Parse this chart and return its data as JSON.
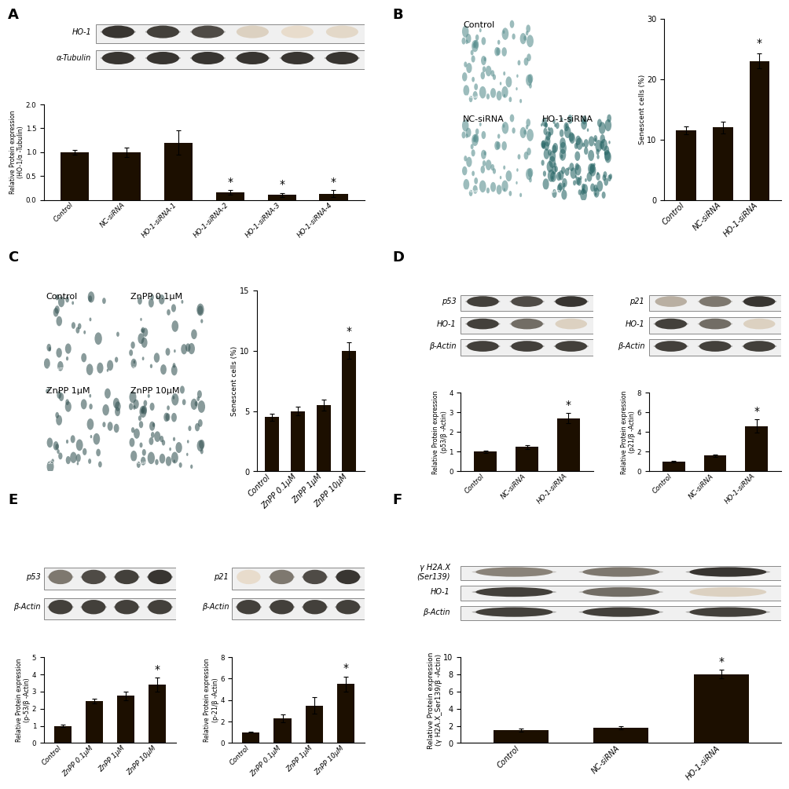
{
  "panel_A": {
    "label": "A",
    "wb_data": [
      {
        "label": "HO-1",
        "intensities": [
          0.85,
          0.8,
          0.75,
          0.15,
          0.1,
          0.12
        ]
      },
      {
        "label": "α-Tubulin",
        "intensities": [
          0.85,
          0.85,
          0.85,
          0.85,
          0.85,
          0.85
        ]
      }
    ],
    "n_lanes": 6,
    "categories": [
      "Control",
      "NC-siRNA",
      "HO-1-siRNA-1",
      "HO-1-siRNA-2",
      "HO-1-siRNA-3",
      "HO-1-siRNA-4"
    ],
    "values": [
      1.0,
      1.0,
      1.2,
      0.15,
      0.1,
      0.13
    ],
    "errors": [
      0.05,
      0.1,
      0.25,
      0.05,
      0.04,
      0.07
    ],
    "ylabel": "Relative Protein expression\n(HO-1/α -Tubulin)",
    "ylim": [
      0,
      2.0
    ],
    "yticks": [
      0.0,
      0.5,
      1.0,
      1.5,
      2.0
    ],
    "sig_bars": [
      3,
      4,
      5
    ],
    "bar_color": "#1c0f00"
  },
  "panel_B": {
    "label": "B",
    "img_labels": [
      "Control",
      "NC-siRNA",
      "HO-1-siRNA"
    ],
    "img_bg": "#d8c8c0",
    "categories": [
      "Control",
      "NC-siRNA",
      "HO-1-siRNA"
    ],
    "values": [
      11.5,
      12.0,
      23.0
    ],
    "errors": [
      0.7,
      1.0,
      1.2
    ],
    "ylabel": "Senescent cells (%)",
    "ylim": [
      0,
      30
    ],
    "yticks": [
      0,
      10,
      20,
      30
    ],
    "sig_bars": [
      2
    ],
    "bar_color": "#1c0f00"
  },
  "panel_C": {
    "label": "C",
    "img_labels": [
      "Control",
      "ZnPP 0.1μM",
      "ZnPP 1μM",
      "ZnPP 10μM"
    ],
    "img_bg": "#ccd8dc",
    "categories": [
      "Control",
      "ZnPP 0.1μM",
      "ZnPP 1μM",
      "ZnPP 10μM"
    ],
    "values": [
      4.5,
      5.0,
      5.5,
      10.0
    ],
    "errors": [
      0.3,
      0.35,
      0.45,
      0.7
    ],
    "ylabel": "Senescent cells (%)",
    "ylim": [
      0,
      15
    ],
    "yticks": [
      0,
      5,
      10,
      15
    ],
    "sig_bars": [
      3
    ],
    "bar_color": "#1c0f00"
  },
  "panel_D_p53": {
    "label": "D",
    "wb_data": [
      {
        "label": "p53",
        "intensities": [
          0.8,
          0.75,
          0.85
        ]
      },
      {
        "label": "HO-1",
        "intensities": [
          0.8,
          0.6,
          0.15
        ]
      },
      {
        "label": "β-Actin",
        "intensities": [
          0.8,
          0.8,
          0.8
        ]
      }
    ],
    "n_lanes": 3,
    "categories": [
      "Control",
      "NC-siRNA",
      "HO-1-siRNA"
    ],
    "values": [
      1.0,
      1.25,
      2.7
    ],
    "errors": [
      0.05,
      0.1,
      0.25
    ],
    "ylabel": "Relative Protein expression\n(p53/β -Actin)",
    "ylim": [
      0,
      4
    ],
    "yticks": [
      0,
      1,
      2,
      3,
      4
    ],
    "sig_bars": [
      2
    ],
    "bar_color": "#1c0f00"
  },
  "panel_D_p21": {
    "wb_data": [
      {
        "label": "p21",
        "intensities": [
          0.3,
          0.55,
          0.85
        ]
      },
      {
        "label": "HO-1",
        "intensities": [
          0.8,
          0.6,
          0.15
        ]
      },
      {
        "label": "β-Actin",
        "intensities": [
          0.8,
          0.8,
          0.8
        ]
      }
    ],
    "n_lanes": 3,
    "categories": [
      "Control",
      "NC-siRNA",
      "HO-1-siRNA"
    ],
    "values": [
      1.0,
      1.6,
      4.6
    ],
    "errors": [
      0.05,
      0.1,
      0.7
    ],
    "ylabel": "Relative Protein expression\n(p21/β -Actin)",
    "ylim": [
      0,
      8
    ],
    "yticks": [
      0,
      2,
      4,
      6,
      8
    ],
    "sig_bars": [
      2
    ],
    "bar_color": "#1c0f00"
  },
  "panel_E_p53": {
    "label": "E",
    "wb_data": [
      {
        "label": "p53",
        "intensities": [
          0.55,
          0.75,
          0.8,
          0.85
        ]
      },
      {
        "label": "β-Actin",
        "intensities": [
          0.8,
          0.8,
          0.8,
          0.8
        ]
      }
    ],
    "n_lanes": 4,
    "categories": [
      "Control",
      "ZnPP 0.1μM",
      "ZnPP 1μM",
      "ZnPP 10μM"
    ],
    "values": [
      1.0,
      2.45,
      2.75,
      3.4
    ],
    "errors": [
      0.05,
      0.15,
      0.25,
      0.4
    ],
    "ylabel": "Relative Protein expression\n(p-53/β -Actin)",
    "ylim": [
      0,
      5
    ],
    "yticks": [
      0,
      1,
      2,
      3,
      4,
      5
    ],
    "sig_bars": [
      3
    ],
    "bar_color": "#1c0f00"
  },
  "panel_E_p21": {
    "wb_data": [
      {
        "label": "p21",
        "intensities": [
          0.1,
          0.55,
          0.75,
          0.85
        ]
      },
      {
        "label": "β-Actin",
        "intensities": [
          0.8,
          0.8,
          0.8,
          0.8
        ]
      }
    ],
    "n_lanes": 4,
    "categories": [
      "Control",
      "ZnPP 0.1μM",
      "ZnPP 1μM",
      "ZnPP 10μM"
    ],
    "values": [
      1.0,
      2.3,
      3.5,
      5.5
    ],
    "errors": [
      0.05,
      0.35,
      0.8,
      0.7
    ],
    "ylabel": "Relative Protein expression\n(p-21/β -Actin)",
    "ylim": [
      0,
      8
    ],
    "yticks": [
      0,
      2,
      4,
      6,
      8
    ],
    "sig_bars": [
      3
    ],
    "bar_color": "#1c0f00"
  },
  "panel_F": {
    "label": "F",
    "wb_data": [
      {
        "label": "γ H2A.X\n(Ser139)",
        "intensities": [
          0.5,
          0.55,
          0.85
        ]
      },
      {
        "label": "HO-1",
        "intensities": [
          0.8,
          0.6,
          0.15
        ]
      },
      {
        "label": "β-Actin",
        "intensities": [
          0.8,
          0.8,
          0.8
        ]
      }
    ],
    "n_lanes": 3,
    "categories": [
      "Control",
      "NC-siRNA",
      "HO-1-siRNA"
    ],
    "values": [
      1.5,
      1.8,
      8.0
    ],
    "errors": [
      0.15,
      0.2,
      0.5
    ],
    "ylabel": "Relative Protein expression\n(γ H2A.X_Ser139/β -Actin)",
    "ylim": [
      0,
      10
    ],
    "yticks": [
      0,
      2,
      4,
      6,
      8,
      10
    ],
    "sig_bars": [
      2
    ],
    "bar_color": "#1c0f00"
  }
}
